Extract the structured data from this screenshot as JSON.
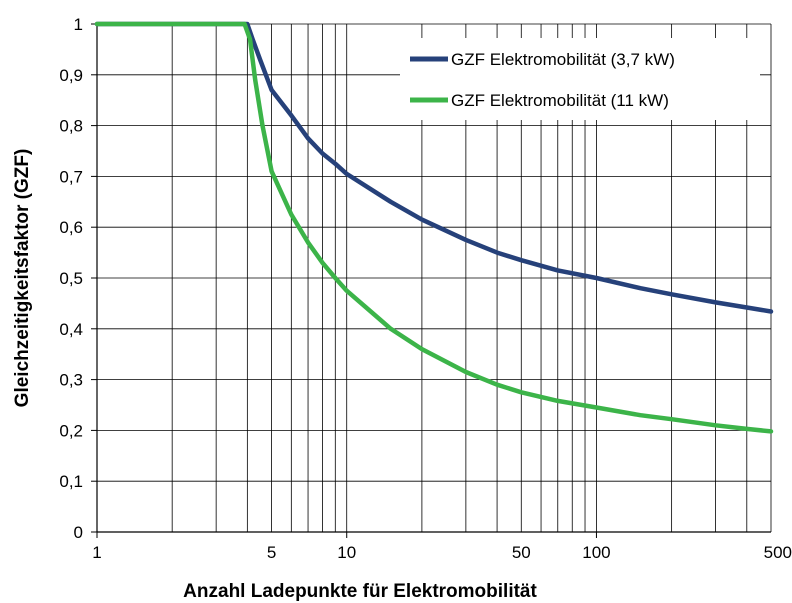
{
  "chart_data": {
    "type": "line",
    "xlabel": "Anzahl Ladepunkte für Elektromobilität",
    "ylabel": "Gleichzeitigkeitsfaktor (GZF)",
    "xscale": "log",
    "xlim": [
      1,
      500
    ],
    "ylim": [
      0,
      1
    ],
    "x_ticks": [
      1,
      5,
      10,
      50,
      100,
      500
    ],
    "x_tick_labels": [
      "1",
      "5",
      "10",
      "50",
      "100",
      "500"
    ],
    "y_ticks": [
      0,
      0.1,
      0.2,
      0.3,
      0.4,
      0.5,
      0.6,
      0.7,
      0.8,
      0.9,
      1
    ],
    "y_tick_labels": [
      "0",
      "0,1",
      "0,2",
      "0,3",
      "0,4",
      "0,5",
      "0,6",
      "0,7",
      "0,8",
      "0,9",
      "1"
    ],
    "grid": {
      "horizontal": true,
      "vertical": "log-minor",
      "vertical_lines": [
        2,
        3,
        4,
        5,
        6,
        7,
        8,
        9,
        10,
        20,
        30,
        40,
        50,
        60,
        70,
        80,
        90,
        100,
        200,
        300,
        400,
        500
      ]
    },
    "legend_position": "top-right",
    "series": [
      {
        "name": "GZF Elektromobilität (3,7 kW)",
        "color": "#26417a",
        "x": [
          1,
          2,
          3,
          4,
          4.2,
          4.5,
          5,
          6,
          7,
          8,
          9,
          10,
          15,
          20,
          30,
          40,
          50,
          70,
          100,
          150,
          200,
          300,
          400,
          500
        ],
        "y": [
          1,
          1,
          1,
          1,
          0.97,
          0.93,
          0.87,
          0.82,
          0.775,
          0.745,
          0.725,
          0.705,
          0.65,
          0.615,
          0.575,
          0.55,
          0.535,
          0.515,
          0.5,
          0.48,
          0.468,
          0.452,
          0.442,
          0.434
        ]
      },
      {
        "name": "GZF Elektromobilität (11 kW)",
        "color": "#3cb449",
        "x": [
          1,
          2,
          3,
          3.9,
          4.1,
          4.3,
          4.6,
          5,
          6,
          7,
          8,
          9,
          10,
          15,
          20,
          30,
          40,
          50,
          70,
          100,
          150,
          200,
          300,
          400,
          500
        ],
        "y": [
          1,
          1,
          1,
          1,
          0.97,
          0.89,
          0.8,
          0.71,
          0.625,
          0.57,
          0.53,
          0.5,
          0.475,
          0.4,
          0.36,
          0.315,
          0.29,
          0.275,
          0.258,
          0.245,
          0.23,
          0.222,
          0.21,
          0.203,
          0.198
        ]
      }
    ]
  }
}
